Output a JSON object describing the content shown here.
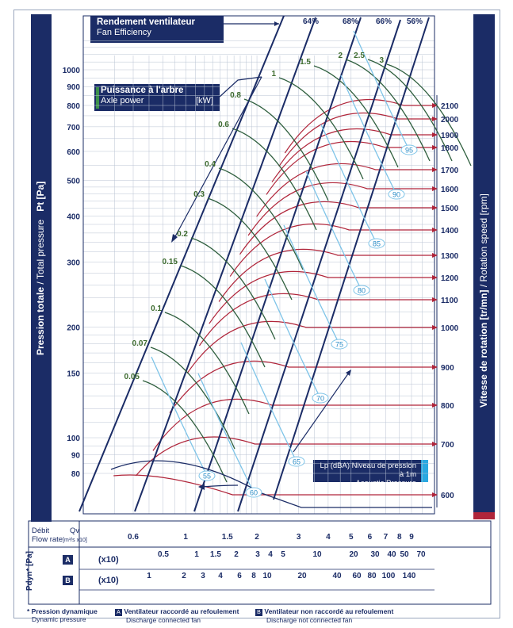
{
  "left_axis": {
    "title_bold": "Pression totale",
    "title_rest": " / Total pressure",
    "unit": "Pt [Pa]"
  },
  "right_axis": {
    "title_bold": "Vitesse de rotation [tr/mn]",
    "title_rest": " / Rotation speed [rpm]"
  },
  "efficiency_legend": {
    "title": "Rendement ventilateur",
    "subtitle": "Fan Efficiency"
  },
  "power_legend": {
    "title": "Puissance à l'arbre",
    "subtitle": "Axle power",
    "unit": "[kW]"
  },
  "acoustic_legend": {
    "line1": "Lp (dBA) Niveau de pression à 1m",
    "line2": "Acoustic Pressure"
  },
  "flow_row": {
    "label": "Débit",
    "sublabel": "Flow rate",
    "unit": "Qv",
    "unit2": "[m³/s x10]"
  },
  "pdyn_row": {
    "label": "Pdyn* [Pa]",
    "multiplier": "(x10)",
    "a_badge": "A",
    "b_badge": "B"
  },
  "footnotes": {
    "star_title": "* Pression dynamique",
    "star_sub": "Dynamic pressure",
    "a_badge": "A",
    "a_title": "Ventilateur raccordé au refoulement",
    "a_sub": "Discharge connected fan",
    "b_badge": "B",
    "b_title": "Ventilateur non raccordé au refoulement",
    "b_sub": "Discharge not connected fan"
  },
  "colors": {
    "navy": "#1b2c66",
    "red_curve": "#b0253a",
    "green_curve": "#2f5f3e",
    "blue_curve": "#7ec4e8",
    "grid": "#b9c3d3",
    "accent_red": "#b0253a",
    "cyan": "#2aa8e0"
  },
  "chart_data": {
    "type": "line",
    "title": "",
    "ylabel": "Pt [Pa]",
    "y_scale": "log",
    "ylim": [
      70,
      1200
    ],
    "y_ticks": [
      "1000",
      "900",
      "800",
      "700",
      "600",
      "500",
      "400",
      "300",
      "200",
      "150",
      "100",
      "90",
      "80"
    ],
    "x_scale": "log",
    "x_ticks": [
      "0.6",
      "1",
      "1.5",
      "2",
      "3",
      "4",
      "5",
      "6",
      "7",
      "8",
      "9"
    ],
    "rotation_speed_rpm": [
      "2100",
      "2000",
      "1900",
      "1800",
      "1700",
      "1600",
      "1500",
      "1400",
      "1300",
      "1200",
      "1100",
      "1000",
      "900",
      "800",
      "700",
      "600"
    ],
    "efficiency_pct": [
      "64%",
      "68%",
      "66%",
      "56%"
    ],
    "axle_power_kw": [
      "0.05",
      "0.07",
      "0.1",
      "0.15",
      "0.2",
      "0.3",
      "0.4",
      "0.6",
      "0.8",
      "1",
      "1.5",
      "2",
      "2.5",
      "3"
    ],
    "noise_dba": [
      "55",
      "60",
      "65",
      "70",
      "75",
      "80",
      "85",
      "90",
      "95"
    ],
    "pdyn_A_ticks": [
      "0.5",
      "1",
      "1.5",
      "2",
      "3",
      "4",
      "5",
      "10",
      "20",
      "30",
      "40",
      "50",
      "70"
    ],
    "pdyn_B_ticks": [
      "1",
      "2",
      "3",
      "4",
      "6",
      "8",
      "10",
      "20",
      "40",
      "60",
      "80",
      "100",
      "140"
    ]
  }
}
